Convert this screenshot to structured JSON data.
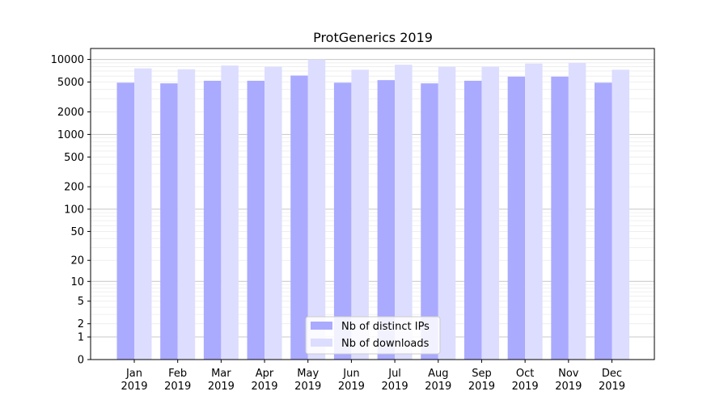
{
  "chart_data": {
    "type": "bar",
    "title": "ProtGenerics 2019",
    "xlabel": "",
    "ylabel": "",
    "y_scale": "log1p",
    "ylim": [
      0,
      14000
    ],
    "y_ticks": [
      0,
      1,
      2,
      5,
      10,
      20,
      50,
      100,
      200,
      500,
      1000,
      2000,
      5000,
      10000
    ],
    "categories": [
      [
        "Jan",
        "2019"
      ],
      [
        "Feb",
        "2019"
      ],
      [
        "Mar",
        "2019"
      ],
      [
        "Apr",
        "2019"
      ],
      [
        "May",
        "2019"
      ],
      [
        "Jun",
        "2019"
      ],
      [
        "Jul",
        "2019"
      ],
      [
        "Aug",
        "2019"
      ],
      [
        "Sep",
        "2019"
      ],
      [
        "Oct",
        "2019"
      ],
      [
        "Nov",
        "2019"
      ],
      [
        "Dec",
        "2019"
      ]
    ],
    "series": [
      {
        "name": "Nb of distinct IPs",
        "color": "#aaaaff",
        "values": [
          4900,
          4800,
          5200,
          5200,
          6100,
          4900,
          5300,
          4800,
          5200,
          5900,
          5900,
          4900
        ]
      },
      {
        "name": "Nb of downloads",
        "color": "#ddddff",
        "values": [
          7600,
          7400,
          8300,
          8000,
          10000,
          7300,
          8500,
          8000,
          8000,
          8800,
          9000,
          7300
        ]
      }
    ],
    "grid": true,
    "legend_position": "bottom-center"
  }
}
